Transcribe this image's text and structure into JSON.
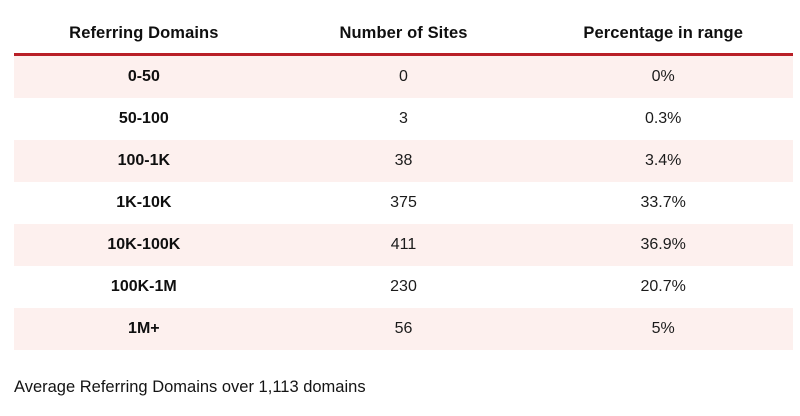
{
  "colors": {
    "accent_red": "#b91f27",
    "row_pink": "#fdf0ee",
    "text": "#161616"
  },
  "chart_data": {
    "type": "table",
    "columns": [
      "Referring Domains",
      "Number of Sites",
      "Percentage in range"
    ],
    "rows": [
      [
        "0-50",
        "0",
        "0%"
      ],
      [
        "50-100",
        "3",
        "0.3%"
      ],
      [
        "100-1K",
        "38",
        "3.4%"
      ],
      [
        "1K-10K",
        "375",
        "33.7%"
      ],
      [
        "10K-100K",
        "411",
        "36.9%"
      ],
      [
        "100K-1M",
        "230",
        "20.7%"
      ],
      [
        "1M+",
        "56",
        "5%"
      ]
    ],
    "caption": "Average Referring Domains over 1,113 domains",
    "layout_hints": {
      "row_striping": "odd rows pink starting with first data row",
      "header_rule_color": "#b91f27",
      "alignment": "all cells centered, caption left-aligned"
    }
  }
}
